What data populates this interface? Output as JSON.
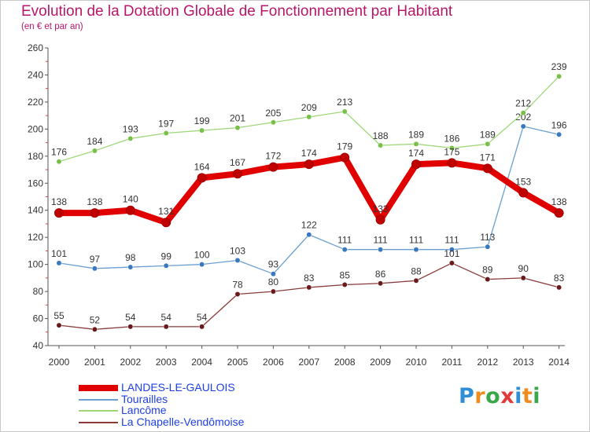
{
  "title": "Evolution de la Dotation Globale de Fonctionnement par Habitant",
  "subtitle": "(en € et par an)",
  "logo": {
    "text": "Proxiti",
    "colors": [
      "#2f8fd6",
      "#f08c1e",
      "#3aa84a",
      "#e03a3a",
      "#2f8fd6",
      "#f08c1e",
      "#3aa84a"
    ]
  },
  "chart_data": {
    "type": "line",
    "title": "Evolution de la Dotation Globale de Fonctionnement par Habitant",
    "subtitle": "(en € et par an)",
    "xlabel": "",
    "ylabel": "",
    "ylim": [
      40,
      260
    ],
    "yticks": [
      40,
      60,
      80,
      100,
      120,
      140,
      160,
      180,
      200,
      220,
      240,
      260
    ],
    "grid": false,
    "legend_position": "bottom-left",
    "x": [
      "2000",
      "2001",
      "2002",
      "2003",
      "2004",
      "2005",
      "2006",
      "2007",
      "2008",
      "2009",
      "2010",
      "2011",
      "2012",
      "2013",
      "2014"
    ],
    "series": [
      {
        "name": "LANDES-LE-GAULOIS",
        "color": "#e00000",
        "marker_color": "#c00000",
        "emphasis": true,
        "values": [
          138,
          138,
          140,
          131,
          164,
          167,
          172,
          174,
          179,
          133,
          174,
          175,
          171,
          153,
          138
        ]
      },
      {
        "name": "Tourailles",
        "color": "#6a9fd0",
        "marker_color": "#3a78c0",
        "emphasis": false,
        "values": [
          101,
          97,
          98,
          99,
          100,
          103,
          93,
          122,
          111,
          111,
          111,
          111,
          113,
          202,
          196
        ]
      },
      {
        "name": "Lancôme",
        "color": "#9ed878",
        "marker_color": "#78c048",
        "emphasis": false,
        "values": [
          176,
          184,
          193,
          197,
          199,
          201,
          205,
          209,
          213,
          188,
          189,
          186,
          189,
          212,
          239
        ]
      },
      {
        "name": "La Chapelle-Vendômoise",
        "color": "#8a3a3a",
        "marker_color": "#6a1a1a",
        "emphasis": false,
        "values": [
          55,
          52,
          54,
          54,
          54,
          78,
          80,
          83,
          85,
          86,
          88,
          101,
          89,
          90,
          83
        ]
      }
    ]
  }
}
